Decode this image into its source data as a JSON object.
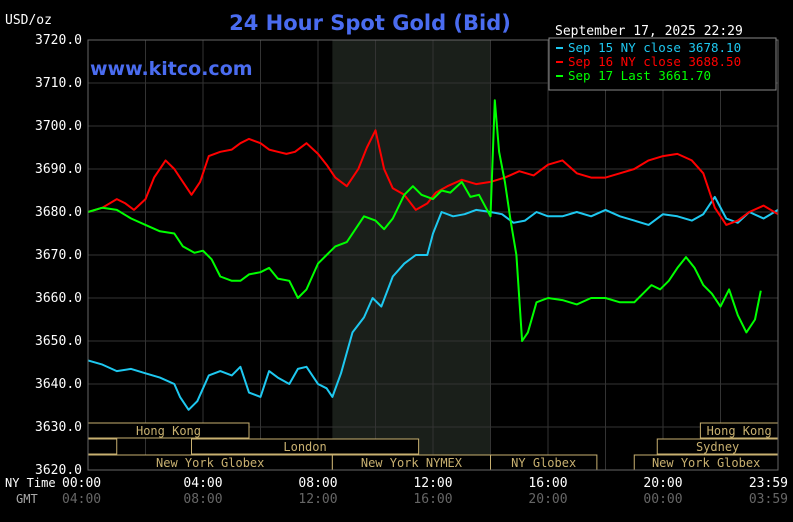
{
  "chart_data": {
    "type": "line",
    "title": "24 Hour Spot Gold (Bid)",
    "watermark": "www.kitco.com",
    "ylabel": "USD/oz",
    "timestamp": "September 17, 2025 22:29",
    "ylim": [
      3620,
      3720
    ],
    "yticks": [
      "3720.0",
      "3710.0",
      "3700.0",
      "3690.0",
      "3680.0",
      "3670.0",
      "3660.0",
      "3650.0",
      "3640.0",
      "3630.0",
      "3620.0"
    ],
    "x_range_hours": [
      0,
      24
    ],
    "x_row_labels": {
      "ny": "NY Time",
      "gmt": "GMT"
    },
    "xticks_ny": [
      "00:00",
      "04:00",
      "08:00",
      "12:00",
      "16:00",
      "20:00",
      "23:59"
    ],
    "xticks_gmt": [
      "04:00",
      "08:00",
      "12:00",
      "16:00",
      "20:00",
      "00:00",
      "03:59"
    ],
    "shaded_hours": [
      8.5,
      14
    ],
    "colors": {
      "background": "#000000",
      "title": "#4a6cf0",
      "grid": "#333333",
      "sep15": "#1ec8f0",
      "sep16": "#ff0000",
      "sep17": "#00ff00",
      "session_text": "#c8b070"
    },
    "legend": {
      "placement": "top-right",
      "entries": [
        {
          "label": "Sep 15 NY close 3678.10",
          "color": "#1ec8f0"
        },
        {
          "label": "Sep 16 NY close 3688.50",
          "color": "#ff0000"
        },
        {
          "label": "Sep 17 Last 3661.70",
          "color": "#00ff00"
        }
      ]
    },
    "sessions": [
      {
        "label": "Hong Kong",
        "row": 1,
        "start": 0,
        "end": 5.6
      },
      {
        "label": "Hong Kong",
        "row": 1,
        "start": 21.3,
        "end": 24
      },
      {
        "label": "",
        "row": 2,
        "start": 0,
        "end": 1
      },
      {
        "label": "London",
        "row": 2,
        "start": 3.6,
        "end": 11.5
      },
      {
        "label": "Sydney",
        "row": 2,
        "start": 19.8,
        "end": 24
      },
      {
        "label": "New York Globex",
        "row": 3,
        "start": 0,
        "end": 8.5
      },
      {
        "label": "New York NYMEX",
        "row": 3,
        "start": 8.5,
        "end": 14
      },
      {
        "label": "NY Globex",
        "row": 3,
        "start": 14,
        "end": 17.7
      },
      {
        "label": "New York Globex",
        "row": 3,
        "start": 19,
        "end": 24
      }
    ],
    "series": [
      {
        "name": "Sep 15 NY close 3678.10",
        "color": "#1ec8f0",
        "x": [
          0,
          0.5,
          1,
          1.5,
          2,
          2.5,
          3,
          3.2,
          3.5,
          3.8,
          4.2,
          4.6,
          5,
          5.3,
          5.6,
          6,
          6.3,
          6.6,
          7,
          7.3,
          7.6,
          8,
          8.3,
          8.5,
          8.8,
          9.2,
          9.6,
          9.9,
          10.2,
          10.6,
          11,
          11.4,
          11.8,
          12,
          12.3,
          12.7,
          13.1,
          13.5,
          14,
          14.4,
          14.8,
          15.2,
          15.6,
          16,
          16.5,
          17,
          17.5,
          18,
          18.5,
          19,
          19.5,
          20,
          20.5,
          21,
          21.4,
          21.8,
          22.2,
          22.6,
          23,
          23.5,
          24
        ],
        "y": [
          3645.5,
          3644.5,
          3643,
          3643.5,
          3642.5,
          3641.5,
          3640,
          3637,
          3634,
          3636,
          3642,
          3643,
          3642,
          3644,
          3638,
          3637,
          3643,
          3641.5,
          3640,
          3643.5,
          3644,
          3640,
          3639,
          3637,
          3642.5,
          3652,
          3655.5,
          3660,
          3658,
          3665,
          3668,
          3670,
          3670,
          3675,
          3680,
          3679,
          3679.5,
          3680.5,
          3680,
          3679.5,
          3677.5,
          3678,
          3680,
          3679,
          3679,
          3680,
          3679,
          3680.5,
          3679,
          3678,
          3677,
          3679.5,
          3679,
          3678,
          3679.5,
          3683.5,
          3678.5,
          3677.5,
          3680,
          3678.5,
          3680.5
        ]
      },
      {
        "name": "Sep 16 NY close 3688.50",
        "color": "#ff0000",
        "x": [
          0,
          0.5,
          1,
          1.3,
          1.6,
          2,
          2.3,
          2.7,
          3,
          3.3,
          3.6,
          3.9,
          4.2,
          4.6,
          5,
          5.3,
          5.6,
          6,
          6.3,
          6.6,
          6.9,
          7.2,
          7.6,
          8,
          8.3,
          8.6,
          9,
          9.4,
          9.7,
          10,
          10.3,
          10.6,
          11,
          11.4,
          11.8,
          12.1,
          12.5,
          13,
          13.5,
          14,
          14.5,
          15,
          15.5,
          16,
          16.5,
          17,
          17.5,
          18,
          18.5,
          19,
          19.5,
          20,
          20.5,
          21,
          21.4,
          21.8,
          22.2,
          22.6,
          23,
          23.5,
          24
        ],
        "y": [
          3680,
          3681,
          3683,
          3682,
          3680.5,
          3683,
          3688,
          3692,
          3690,
          3687,
          3684,
          3687,
          3693,
          3694,
          3694.5,
          3696,
          3697,
          3696,
          3694.5,
          3694,
          3693.5,
          3694,
          3696,
          3693.5,
          3691,
          3688,
          3686,
          3690,
          3695,
          3699,
          3690,
          3685.5,
          3684,
          3680.5,
          3682,
          3684.5,
          3686,
          3687.5,
          3686.5,
          3687,
          3688,
          3689.5,
          3688.5,
          3691,
          3692,
          3689,
          3688,
          3688,
          3689,
          3690,
          3692,
          3693,
          3693.5,
          3692,
          3689,
          3681,
          3677,
          3678,
          3680,
          3681.5,
          3679.5
        ]
      },
      {
        "name": "Sep 17 Last 3661.70",
        "color": "#00ff00",
        "x": [
          0,
          0.5,
          1,
          1.5,
          2,
          2.5,
          3,
          3.3,
          3.7,
          4,
          4.3,
          4.6,
          5,
          5.3,
          5.6,
          6,
          6.3,
          6.6,
          7,
          7.3,
          7.6,
          8,
          8.3,
          8.6,
          9,
          9.3,
          9.6,
          10,
          10.3,
          10.6,
          11,
          11.3,
          11.6,
          12,
          12.3,
          12.6,
          13,
          13.3,
          13.6,
          14,
          14.15,
          14.3,
          14.5,
          14.7,
          14.9,
          15.1,
          15.3,
          15.6,
          16,
          16.5,
          17,
          17.5,
          18,
          18.5,
          19,
          19.3,
          19.6,
          19.9,
          20.2,
          20.5,
          20.8,
          21.1,
          21.4,
          21.7,
          22,
          22.3,
          22.6,
          22.9,
          23.2,
          23.4
        ],
        "y": [
          3680,
          3681,
          3680.5,
          3678.5,
          3677,
          3675.5,
          3675,
          3672,
          3670.5,
          3671,
          3669,
          3665,
          3664,
          3664,
          3665.5,
          3666,
          3667,
          3664.5,
          3664,
          3660,
          3662,
          3668,
          3670,
          3672,
          3673,
          3676,
          3679,
          3678,
          3676,
          3678.5,
          3684,
          3686,
          3684,
          3683,
          3685,
          3684.5,
          3687,
          3683.5,
          3684,
          3679,
          3706,
          3694,
          3687,
          3678,
          3670,
          3650,
          3652,
          3659,
          3660,
          3659.5,
          3658.5,
          3660,
          3660,
          3659,
          3659,
          3661,
          3663,
          3662,
          3664,
          3667,
          3669.5,
          3667,
          3663,
          3661,
          3658,
          3662,
          3656,
          3652,
          3655,
          3661.7
        ]
      }
    ]
  }
}
